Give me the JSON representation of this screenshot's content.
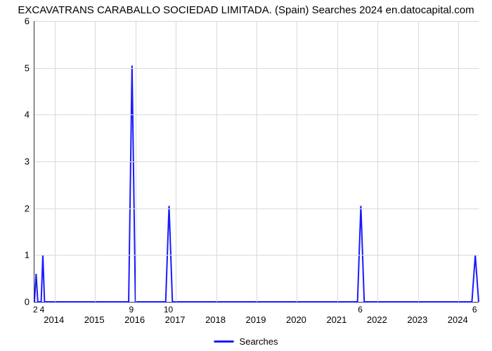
{
  "chart": {
    "type": "line",
    "title": "EXCAVATRANS CARABALLO SOCIEDAD LIMITADA. (Spain) Searches 2024 en.datocapital.com",
    "title_fontsize": 15,
    "title_color": "#000000",
    "background_color": "#ffffff",
    "grid_color": "#d9d9d9",
    "axis_color": "#333333",
    "line_color": "#1a1aff",
    "line_width": 2,
    "x_range": 132,
    "ylim_min": 0,
    "ylim_max": 6,
    "ytick_step": 1,
    "y_ticks": [
      0,
      1,
      2,
      3,
      4,
      5,
      6
    ],
    "x_year_ticks": [
      {
        "label": "2014",
        "x": 6
      },
      {
        "label": "2015",
        "x": 18
      },
      {
        "label": "2016",
        "x": 30
      },
      {
        "label": "2017",
        "x": 42
      },
      {
        "label": "2018",
        "x": 54
      },
      {
        "label": "2019",
        "x": 66
      },
      {
        "label": "2020",
        "x": 78
      },
      {
        "label": "2021",
        "x": 90
      },
      {
        "label": "2022",
        "x": 102
      },
      {
        "label": "2023",
        "x": 114
      },
      {
        "label": "2024",
        "x": 126
      }
    ],
    "point_labels": [
      {
        "x": 0.5,
        "label": "2"
      },
      {
        "x": 2.5,
        "label": "4"
      },
      {
        "x": 29,
        "label": "9"
      },
      {
        "x": 40,
        "label": "10"
      },
      {
        "x": 97,
        "label": "6"
      },
      {
        "x": 131,
        "label": "6"
      }
    ],
    "data": [
      {
        "x": 0,
        "y": 0
      },
      {
        "x": 0.5,
        "y": 0.6
      },
      {
        "x": 1,
        "y": 0
      },
      {
        "x": 2,
        "y": 0
      },
      {
        "x": 2.5,
        "y": 1
      },
      {
        "x": 3,
        "y": 0
      },
      {
        "x": 28,
        "y": 0
      },
      {
        "x": 29,
        "y": 5.05
      },
      {
        "x": 30,
        "y": 0
      },
      {
        "x": 39,
        "y": 0
      },
      {
        "x": 40,
        "y": 2.05
      },
      {
        "x": 41,
        "y": 0
      },
      {
        "x": 96,
        "y": 0
      },
      {
        "x": 97,
        "y": 2.05
      },
      {
        "x": 98,
        "y": 0
      },
      {
        "x": 130,
        "y": 0
      },
      {
        "x": 131,
        "y": 1
      },
      {
        "x": 132,
        "y": 0
      }
    ],
    "legend_label": "Searches",
    "label_fontsize": 13,
    "label_color": "#000000"
  }
}
